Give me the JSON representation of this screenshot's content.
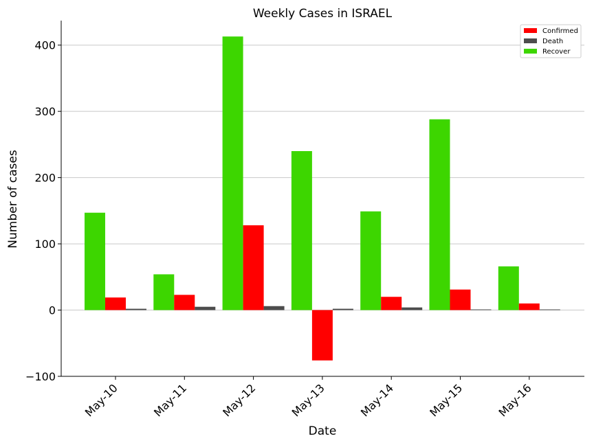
{
  "chart_data": {
    "type": "bar",
    "title": "Weekly Cases in ISRAEL",
    "xlabel": "Date",
    "ylabel": "Number of cases",
    "categories": [
      "May-10",
      "May-11",
      "May-12",
      "May-13",
      "May-14",
      "May-15",
      "May-16"
    ],
    "series": [
      {
        "name": "Recover",
        "color": "#3dd600",
        "values": [
          147,
          54,
          413,
          240,
          149,
          288,
          66
        ]
      },
      {
        "name": "Confirmed",
        "color": "#ff0000",
        "values": [
          19,
          23,
          128,
          -76,
          20,
          31,
          10
        ]
      },
      {
        "name": "Death",
        "color": "#4d4d4d",
        "values": [
          2,
          5,
          6,
          2,
          4,
          1,
          1
        ]
      }
    ],
    "legend_order": [
      "Confirmed",
      "Death",
      "Recover"
    ],
    "legend_position": "top-right",
    "ylim": [
      -100,
      437
    ],
    "yticks": [
      -100,
      0,
      100,
      200,
      300,
      400
    ],
    "ytick_labels": [
      "−100",
      "0",
      "100",
      "200",
      "300",
      "400"
    ],
    "grid": "horizontal"
  }
}
